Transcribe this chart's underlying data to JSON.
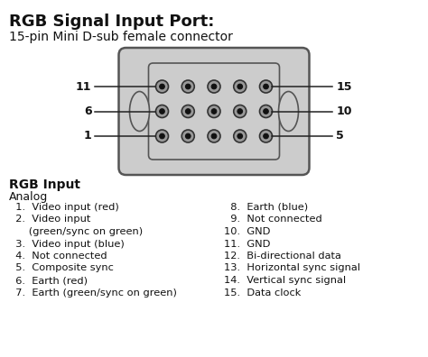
{
  "title": "RGB Signal Input Port:",
  "subtitle": "15-pin Mini D-sub female connector",
  "bg_color": "#ffffff",
  "connector_bg": "#cccccc",
  "connector_edge": "#555555",
  "title_fontsize": 13,
  "subtitle_fontsize": 10,
  "section_title": "RGB Input",
  "section_sub": "Analog",
  "left_list": [
    "  1.  Video input (red)",
    "  2.  Video input",
    "      (green/sync on green)",
    "  3.  Video input (blue)",
    "  4.  Not connected",
    "  5.  Composite sync",
    "  6.  Earth (red)",
    "  7.  Earth (green/sync on green)"
  ],
  "right_list": [
    "  8.  Earth (blue)",
    "  9.  Not connected",
    "10.  GND",
    "11.  GND",
    "12.  Bi-directional data",
    "13.  Horizontal sync signal",
    "14.  Vertical sync signal",
    "15.  Data clock"
  ],
  "pin_left_labels": [
    "11",
    "6",
    "1"
  ],
  "pin_right_labels": [
    "15",
    "10",
    "5"
  ]
}
